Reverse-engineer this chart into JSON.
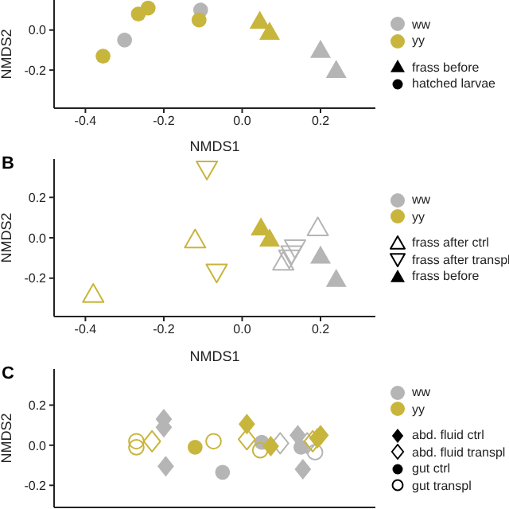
{
  "chart_data": [
    {
      "type": "scatter",
      "xlabel": "NMDS1",
      "ylabel": "NMDS2",
      "xlim": [
        -0.48,
        0.34
      ],
      "ylim": [
        -0.39,
        0.15
      ],
      "xticks": [
        {
          "value": -0.4,
          "label": "-0.4"
        },
        {
          "value": -0.2,
          "label": "-0.2"
        },
        {
          "value": 0,
          "label": "0.0"
        },
        {
          "value": 0.2,
          "label": "0.2"
        }
      ],
      "yticks": [
        {
          "value": -0.2,
          "label": "-0.2"
        },
        {
          "value": 0,
          "label": "0.0"
        }
      ],
      "annotations": [
        "ww",
        "yy",
        "frass before",
        "hatched larvae"
      ],
      "series": [
        {
          "color": "#b5b5b5",
          "marker": "triangle",
          "x": [
            0.2,
            0.24
          ],
          "values": [
            -0.1,
            -0.2
          ]
        },
        {
          "color": "#b5b5b5",
          "marker": "circle",
          "x": [
            -0.106,
            -0.3
          ],
          "values": [
            0.1,
            -0.05
          ]
        },
        {
          "color": "#c8b53c",
          "marker": "triangle",
          "x": [
            0.045,
            0.07
          ],
          "values": [
            0.045,
            -0.01
          ]
        },
        {
          "color": "#c8b53c",
          "marker": "circle",
          "x": [
            -0.11,
            -0.24,
            -0.265,
            -0.355
          ],
          "values": [
            0.05,
            0.11,
            0.08,
            -0.13
          ]
        }
      ]
    },
    {
      "type": "scatter",
      "title": "B",
      "xlabel": "NMDS1",
      "ylabel": "NMDS2",
      "xlim": [
        -0.48,
        0.34
      ],
      "ylim": [
        -0.39,
        0.39
      ],
      "xticks": [
        {
          "value": -0.4,
          "label": "-0.4"
        },
        {
          "value": -0.2,
          "label": "-0.2"
        },
        {
          "value": 0,
          "label": "0.0"
        },
        {
          "value": 0.2,
          "label": "0.2"
        }
      ],
      "yticks": [
        {
          "value": -0.2,
          "label": "-0.2"
        },
        {
          "value": 0,
          "label": "0.0"
        },
        {
          "value": 0.2,
          "label": "0.2"
        }
      ],
      "annotations": [
        "ww",
        "yy",
        "frass after ctrl",
        "frass after transpl",
        "frass before"
      ],
      "series": [
        {
          "color": "#b5b5b5",
          "marker": "triangle-open",
          "x": [
            0.193,
            0.105
          ],
          "values": [
            0.05,
            -0.12
          ]
        },
        {
          "color": "#b5b5b5",
          "marker": "triangle-down-open",
          "x": [
            0.135,
            0.126,
            0.12
          ],
          "values": [
            -0.05,
            -0.08,
            -0.1
          ]
        },
        {
          "color": "#b5b5b5",
          "marker": "triangle",
          "x": [
            0.2,
            0.24
          ],
          "values": [
            -0.09,
            -0.205
          ]
        },
        {
          "color": "#c8b53c",
          "marker": "triangle-open",
          "x": [
            -0.12,
            -0.38
          ],
          "values": [
            -0.01,
            -0.28
          ]
        },
        {
          "color": "#c8b53c",
          "marker": "triangle-down-open",
          "x": [
            -0.09,
            -0.065
          ],
          "values": [
            0.34,
            -0.17
          ]
        },
        {
          "color": "#c8b53c",
          "marker": "triangle",
          "x": [
            0.048,
            0.07
          ],
          "values": [
            0.05,
            -0.005
          ]
        }
      ]
    },
    {
      "type": "scatter",
      "title": "C",
      "ylabel": "NMDS2",
      "xlim": [
        -0.48,
        0.34
      ],
      "ylim": [
        -0.31,
        0.38
      ],
      "tick_labels": "y",
      "yticks": [
        {
          "value": -0.2,
          "label": "-0.2"
        },
        {
          "value": 0,
          "label": "0.0"
        },
        {
          "value": 0.2,
          "label": "0.2"
        }
      ],
      "annotations": [
        "ww",
        "yy",
        "abd. fluid ctrl",
        "abd. fluid transpl",
        "gut ctrl",
        "gut transpl"
      ],
      "series": [
        {
          "color": "#b5b5b5",
          "marker": "diamond",
          "x": [
            -0.2,
            -0.2,
            -0.195,
            0.142,
            0.155
          ],
          "values": [
            0.13,
            0.09,
            -0.105,
            0.05,
            -0.12
          ]
        },
        {
          "color": "#b5b5b5",
          "marker": "diamond-open",
          "x": [
            0.097,
            0.166
          ],
          "values": [
            0.01,
            0.01
          ]
        },
        {
          "color": "#b5b5b5",
          "marker": "circle",
          "x": [
            -0.05,
            0.05,
            0.15
          ],
          "values": [
            -0.135,
            0.015,
            -0.01
          ]
        },
        {
          "color": "#b5b5b5",
          "marker": "circle-open",
          "x": [
            0.186
          ],
          "values": [
            -0.035
          ]
        },
        {
          "color": "#c8b53c",
          "marker": "diamond",
          "x": [
            0.012,
            0.073,
            0.192,
            0.2
          ],
          "values": [
            0.105,
            -0.005,
            0.035,
            0.05
          ]
        },
        {
          "color": "#c8b53c",
          "marker": "diamond-open",
          "x": [
            -0.23,
            0.012,
            0.18
          ],
          "values": [
            0.02,
            0.03,
            0.02
          ]
        },
        {
          "color": "#c8b53c",
          "marker": "circle",
          "x": [
            -0.12
          ],
          "values": [
            -0.01
          ]
        },
        {
          "color": "#c8b53c",
          "marker": "circle-open",
          "x": [
            -0.27,
            -0.27,
            -0.073,
            0.046
          ],
          "values": [
            0.02,
            -0.01,
            0.02,
            -0.025
          ]
        }
      ]
    }
  ]
}
